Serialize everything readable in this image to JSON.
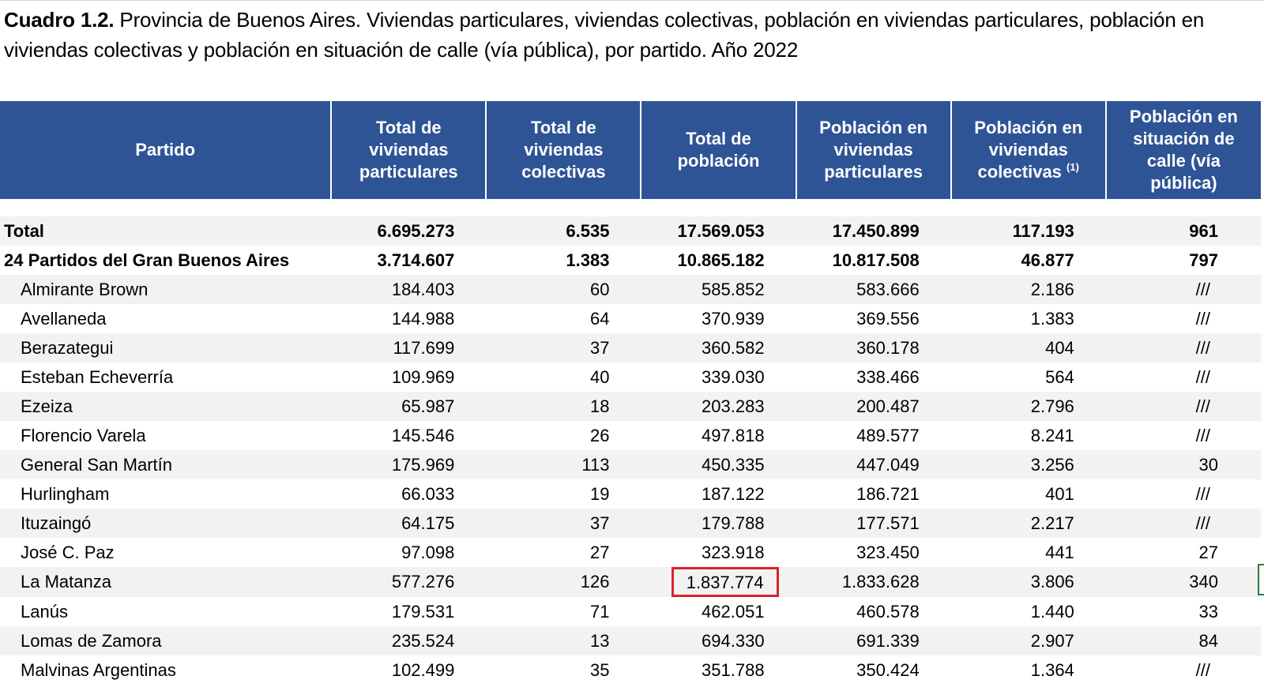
{
  "title": {
    "code": "Cuadro 1.2.",
    "text": " Provincia de Buenos Aires. Viviendas particulares, viviendas colectivas, población en viviendas particulares, población en viviendas colectivas y población en situación de calle (vía pública), por partido. Año 2022"
  },
  "columns": {
    "partido": "Partido",
    "total_viv_part": "Total de viviendas particulares",
    "total_viv_col": "Total de viviendas colectivas",
    "total_pob": "Total de población",
    "pob_viv_part": "Población en viviendas particulares",
    "pob_viv_col": "Población en viviendas colectivas",
    "pob_viv_col_note": "(1)",
    "pob_calle": "Población en situación de calle (vía pública)"
  },
  "rows": [
    [
      "Total",
      "6.695.273",
      "6.535",
      "17.569.053",
      "17.450.899",
      "117.193",
      "961"
    ],
    [
      "24 Partidos del Gran Buenos Aires",
      "3.714.607",
      "1.383",
      "10.865.182",
      "10.817.508",
      "46.877",
      "797"
    ],
    [
      "Almirante Brown",
      "184.403",
      "60",
      "585.852",
      "583.666",
      "2.186",
      "///"
    ],
    [
      "Avellaneda",
      "144.988",
      "64",
      "370.939",
      "369.556",
      "1.383",
      "///"
    ],
    [
      "Berazategui",
      "117.699",
      "37",
      "360.582",
      "360.178",
      "404",
      "///"
    ],
    [
      "Esteban Echeverría",
      "109.969",
      "40",
      "339.030",
      "338.466",
      "564",
      "///"
    ],
    [
      "Ezeiza",
      "65.987",
      "18",
      "203.283",
      "200.487",
      "2.796",
      "///"
    ],
    [
      "Florencio Varela",
      "145.546",
      "26",
      "497.818",
      "489.577",
      "8.241",
      "///"
    ],
    [
      "General San Martín",
      "175.969",
      "113",
      "450.335",
      "447.049",
      "3.256",
      "30"
    ],
    [
      "Hurlingham",
      "66.033",
      "19",
      "187.122",
      "186.721",
      "401",
      "///"
    ],
    [
      "Ituzaingó",
      "64.175",
      "37",
      "179.788",
      "177.571",
      "2.217",
      "///"
    ],
    [
      "José C. Paz",
      "97.098",
      "27",
      "323.918",
      "323.450",
      "441",
      "27"
    ],
    [
      "La Matanza",
      "577.276",
      "126",
      "1.837.774",
      "1.833.628",
      "3.806",
      "340"
    ],
    [
      "Lanús",
      "179.531",
      "71",
      "462.051",
      "460.578",
      "1.440",
      "33"
    ],
    [
      "Lomas de Zamora",
      "235.524",
      "13",
      "694.330",
      "691.339",
      "2.907",
      "84"
    ],
    [
      "Malvinas Argentinas",
      "102.499",
      "35",
      "351.788",
      "350.424",
      "1.364",
      "///"
    ]
  ],
  "highlighted_cell": {
    "row": 12,
    "col": 3
  },
  "colors": {
    "header_bg": "#2f5496",
    "header_text": "#ffffff",
    "stripe": "#f2f2f2",
    "highlight_border": "#d9212a"
  }
}
